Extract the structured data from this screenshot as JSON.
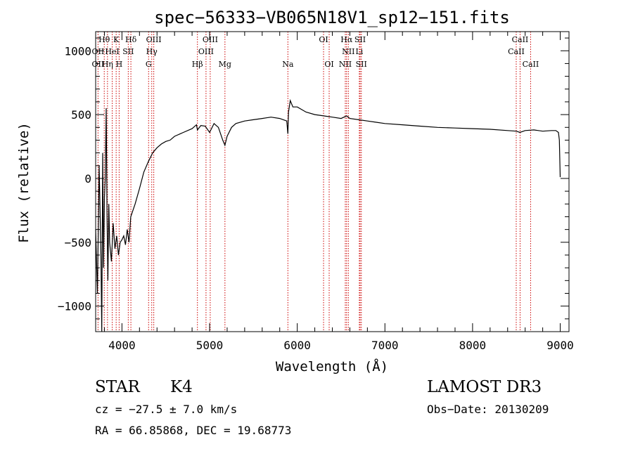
{
  "chart_data": {
    "type": "line",
    "title": "spec−56333−VB065N18V1_sp12−151.fits",
    "xlabel": "Wavelength (Å)",
    "ylabel": "Flux (relative)",
    "xlim": [
      3700,
      9100
    ],
    "ylim": [
      -1200,
      1150
    ],
    "xticks": [
      4000,
      5000,
      6000,
      7000,
      8000,
      9000
    ],
    "yticks": [
      -1000,
      -500,
      0,
      500,
      1000
    ],
    "ytick_labels": [
      "−1000",
      "−500",
      "0",
      "500",
      "1000"
    ],
    "series": [
      {
        "name": "flux",
        "x": [
          3700,
          3720,
          3740,
          3760,
          3770,
          3780,
          3790,
          3800,
          3810,
          3820,
          3830,
          3840,
          3850,
          3860,
          3880,
          3900,
          3920,
          3940,
          3960,
          3980,
          4000,
          4020,
          4040,
          4060,
          4080,
          4100,
          4150,
          4200,
          4250,
          4300,
          4350,
          4400,
          4450,
          4500,
          4550,
          4600,
          4700,
          4800,
          4850,
          4861,
          4900,
          4950,
          5000,
          5050,
          5100,
          5150,
          5175,
          5200,
          5250,
          5300,
          5400,
          5500,
          5600,
          5700,
          5800,
          5880,
          5893,
          5900,
          5920,
          5950,
          6000,
          6100,
          6200,
          6300,
          6400,
          6500,
          6563,
          6600,
          6700,
          6800,
          6900,
          7000,
          7200,
          7400,
          7600,
          7800,
          8000,
          8200,
          8400,
          8500,
          8540,
          8600,
          8700,
          8800,
          8900,
          8950,
          8980,
          8990,
          9000
        ],
        "y": [
          -400,
          -900,
          100,
          -600,
          -1200,
          200,
          -700,
          -150,
          0,
          550,
          -300,
          -800,
          -200,
          -500,
          -650,
          -350,
          -550,
          -450,
          -600,
          -500,
          -480,
          -450,
          -520,
          -400,
          -500,
          -300,
          -200,
          -80,
          50,
          130,
          200,
          240,
          270,
          290,
          300,
          330,
          360,
          390,
          420,
          380,
          415,
          410,
          360,
          430,
          400,
          300,
          260,
          330,
          400,
          430,
          450,
          460,
          470,
          480,
          470,
          450,
          350,
          520,
          610,
          560,
          560,
          520,
          500,
          490,
          480,
          470,
          490,
          470,
          460,
          450,
          440,
          430,
          420,
          410,
          400,
          395,
          390,
          385,
          375,
          370,
          360,
          375,
          380,
          370,
          375,
          375,
          360,
          300,
          10
        ]
      }
    ],
    "line_markers": [
      {
        "row": 0,
        "wl": 3798,
        "label": "Hθ"
      },
      {
        "row": 0,
        "wl": 3934,
        "label": "K"
      },
      {
        "row": 0,
        "wl": 4102,
        "label": "Hδ"
      },
      {
        "row": 0,
        "wl": 4363,
        "label": "OIII"
      },
      {
        "row": 0,
        "wl": 5007,
        "label": "OIII"
      },
      {
        "row": 0,
        "wl": 6300,
        "label": "OI"
      },
      {
        "row": 0,
        "wl": 6563,
        "label": "Hα"
      },
      {
        "row": 0,
        "wl": 6717,
        "label": "SII"
      },
      {
        "row": 0,
        "wl": 8542,
        "label": "CaII"
      },
      {
        "row": 1,
        "wl": 3727,
        "label": "OII"
      },
      {
        "row": 1,
        "wl": 3889,
        "label": "HeI"
      },
      {
        "row": 1,
        "wl": 4072,
        "label": "SII"
      },
      {
        "row": 1,
        "wl": 4340,
        "label": "Hγ"
      },
      {
        "row": 1,
        "wl": 4959,
        "label": "OIII"
      },
      {
        "row": 1,
        "wl": 6583,
        "label": "NII"
      },
      {
        "row": 1,
        "wl": 6708,
        "label": "Li"
      },
      {
        "row": 1,
        "wl": 8498,
        "label": "CaII"
      },
      {
        "row": 2,
        "wl": 3727,
        "label": "OII"
      },
      {
        "row": 2,
        "wl": 3835,
        "label": "Hη"
      },
      {
        "row": 2,
        "wl": 3968,
        "label": "H"
      },
      {
        "row": 2,
        "wl": 4304,
        "label": "G"
      },
      {
        "row": 2,
        "wl": 4861,
        "label": "Hβ"
      },
      {
        "row": 2,
        "wl": 5175,
        "label": "Mg"
      },
      {
        "row": 2,
        "wl": 5893,
        "label": "Na"
      },
      {
        "row": 2,
        "wl": 6364,
        "label": "OI"
      },
      {
        "row": 2,
        "wl": 6548,
        "label": "NII"
      },
      {
        "row": 2,
        "wl": 6731,
        "label": "SII"
      },
      {
        "row": 2,
        "wl": 8662,
        "label": "CaII"
      }
    ]
  },
  "info": {
    "object_class": "STAR",
    "subclass": "K4",
    "survey": "LAMOST DR3",
    "cz": "cz = −27.5 ± 7.0 km/s",
    "obs_date": "Obs−Date: 20130209",
    "coords": "RA =  66.85868, DEC =  19.68773"
  },
  "colors": {
    "line_marker": "#cc0000",
    "spectrum": "#000000"
  }
}
